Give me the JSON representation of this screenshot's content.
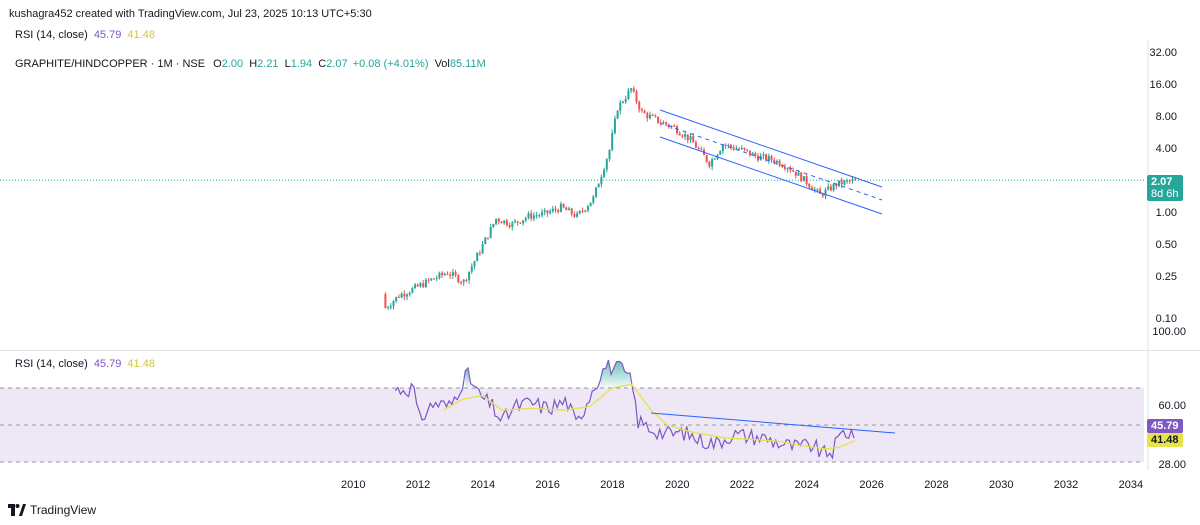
{
  "header": {
    "created_by": "kushagra452 created with TradingView.com, Jul 23, 2025 10:13 UTC+5:30"
  },
  "top_rsi_legend": {
    "label": "RSI (14, close)",
    "rsi": "45.79",
    "ma": "41.48"
  },
  "symbol_legend": {
    "symbol": "GRAPHITE/HINDCOPPER · 1M · NSE",
    "o_label": "O",
    "o": "2.00",
    "h_label": "H",
    "h": "2.21",
    "l_label": "L",
    "l": "1.94",
    "c_label": "C",
    "c": "2.07",
    "change": "+0.08 (+4.01%)",
    "vol_label": "Vol",
    "vol": "85.11M"
  },
  "price_badge": {
    "price": "2.07",
    "countdown": "8d 6h"
  },
  "rsi_legend": {
    "label": "RSI (14, close)",
    "rsi": "45.79",
    "ma": "41.48"
  },
  "rsi_badges": {
    "rsi": "45.79",
    "ma": "41.48"
  },
  "footer": {
    "brand": "TradingView"
  },
  "colors": {
    "up": "#26a69a",
    "down": "#ef5350",
    "rsi_line": "#7e57c2",
    "rsi_ma": "#e6e24a",
    "channel": "#2962ff",
    "rsi_band_fill": "#ede7f6",
    "price_line": "#26a69a"
  },
  "chart_data": [
    {
      "type": "candlestick",
      "scale": "log",
      "interval": "1M",
      "price_axis_ticks": [
        "32.00",
        "16.00",
        "8.00",
        "4.00",
        "2.00",
        "1.00",
        "0.50",
        "0.25",
        "0.10"
      ],
      "ylim": [
        0.085,
        34
      ],
      "time_axis_ticks": [
        "2010",
        "2012",
        "2014",
        "2016",
        "2018",
        "2020",
        "2022",
        "2024",
        "2026",
        "2028",
        "2030",
        "2032",
        "2034"
      ],
      "xlim": [
        2009.0,
        2034.5
      ],
      "last_close": 2.07,
      "series": [
        {
          "date": "2011-01",
          "close": 0.13
        },
        {
          "date": "2011-06",
          "close": 0.17
        },
        {
          "date": "2011-12",
          "close": 0.2
        },
        {
          "date": "2012-06",
          "close": 0.24
        },
        {
          "date": "2012-12",
          "close": 0.28
        },
        {
          "date": "2013-06",
          "close": 0.23
        },
        {
          "date": "2013-12",
          "close": 0.45
        },
        {
          "date": "2014-06",
          "close": 0.9
        },
        {
          "date": "2014-12",
          "close": 0.8
        },
        {
          "date": "2015-06",
          "close": 0.95
        },
        {
          "date": "2015-12",
          "close": 1.0
        },
        {
          "date": "2016-06",
          "close": 1.15
        },
        {
          "date": "2016-12",
          "close": 0.95
        },
        {
          "date": "2017-06",
          "close": 1.4
        },
        {
          "date": "2017-12",
          "close": 4.0
        },
        {
          "date": "2018-03",
          "close": 10.0
        },
        {
          "date": "2018-08",
          "close": 15.0
        },
        {
          "date": "2018-12",
          "close": 9.0
        },
        {
          "date": "2019-06",
          "close": 7.5
        },
        {
          "date": "2019-12",
          "close": 6.5
        },
        {
          "date": "2020-06",
          "close": 5.0
        },
        {
          "date": "2021-01",
          "close": 3.0
        },
        {
          "date": "2021-06",
          "close": 4.5
        },
        {
          "date": "2022-01",
          "close": 4.0
        },
        {
          "date": "2022-06",
          "close": 3.5
        },
        {
          "date": "2023-01",
          "close": 3.2
        },
        {
          "date": "2023-06",
          "close": 2.8
        },
        {
          "date": "2024-01",
          "close": 2.0
        },
        {
          "date": "2024-06",
          "close": 1.5
        },
        {
          "date": "2024-12",
          "close": 1.9
        },
        {
          "date": "2025-07",
          "close": 2.07
        }
      ]
    },
    {
      "type": "line",
      "title": "RSI (14, close)",
      "axis_ticks": [
        "100.00",
        "60.00",
        "28.00"
      ],
      "ylim": [
        22,
        100
      ],
      "levels": [
        70,
        50,
        30
      ],
      "last_values": {
        "rsi": 45.79,
        "ma": 41.48
      },
      "series": [
        {
          "name": "RSI",
          "points": [
            [
              2011.3,
              69
            ],
            [
              2011.9,
              70
            ],
            [
              2012.0,
              52
            ],
            [
              2012.5,
              62
            ],
            [
              2013.0,
              60
            ],
            [
              2013.5,
              78
            ],
            [
              2013.9,
              66
            ],
            [
              2014.3,
              60
            ],
            [
              2014.6,
              52
            ],
            [
              2015.0,
              60
            ],
            [
              2015.5,
              62
            ],
            [
              2016.0,
              59
            ],
            [
              2016.6,
              63
            ],
            [
              2016.9,
              50
            ],
            [
              2017.4,
              70
            ],
            [
              2017.8,
              82
            ],
            [
              2018.3,
              80
            ],
            [
              2018.6,
              73
            ],
            [
              2018.8,
              52
            ],
            [
              2019.2,
              48
            ],
            [
              2019.7,
              45
            ],
            [
              2020.2,
              46
            ],
            [
              2020.7,
              42
            ],
            [
              2021.2,
              40
            ],
            [
              2021.7,
              45
            ],
            [
              2022.2,
              44
            ],
            [
              2022.7,
              43
            ],
            [
              2023.2,
              40
            ],
            [
              2023.7,
              38
            ],
            [
              2024.2,
              39
            ],
            [
              2024.5,
              34
            ],
            [
              2024.8,
              36
            ],
            [
              2025.1,
              46
            ],
            [
              2025.5,
              45.79
            ]
          ]
        },
        {
          "name": "RSI MA",
          "points": [
            [
              2012.8,
              58
            ],
            [
              2013.4,
              64
            ],
            [
              2014.0,
              66
            ],
            [
              2014.6,
              58
            ],
            [
              2015.5,
              59
            ],
            [
              2016.5,
              58
            ],
            [
              2017.3,
              60
            ],
            [
              2018.0,
              70
            ],
            [
              2018.6,
              72
            ],
            [
              2019.2,
              58
            ],
            [
              2019.7,
              50
            ],
            [
              2020.5,
              46
            ],
            [
              2021.5,
              43
            ],
            [
              2022.5,
              42
            ],
            [
              2023.2,
              41
            ],
            [
              2023.8,
              39
            ],
            [
              2024.6,
              37
            ],
            [
              2025.0,
              38
            ],
            [
              2025.5,
              41.48
            ]
          ]
        }
      ]
    }
  ]
}
